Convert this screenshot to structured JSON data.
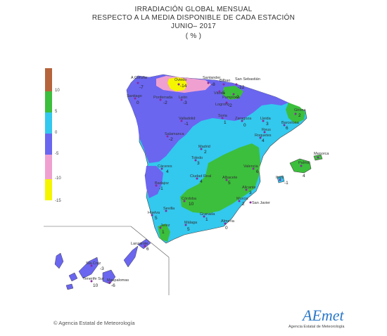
{
  "header": {
    "line1": "IRRADIACIÓN GLOBAL MENSUAL",
    "line2": "RESPECTO A LA MEDIA DISPONIBLE DE CADA ESTACIÓN",
    "line3": "JUNIO– 2017",
    "line4": "( % )"
  },
  "legend": {
    "bands": [
      {
        "color": "#b5643c"
      },
      {
        "color": "#3cbf3c"
      },
      {
        "color": "#33c8ee"
      },
      {
        "color": "#6a66f0"
      },
      {
        "color": "#f0a0d0"
      },
      {
        "color": "#f5f500"
      }
    ],
    "labels": [
      "10",
      "5",
      "0",
      "-5",
      "-10",
      "-15"
    ]
  },
  "stations": [
    {
      "name": "A Coruña",
      "value": "-7"
    },
    {
      "name": "Oviedo",
      "value": "-14"
    },
    {
      "name": "Santander",
      "value": "-8"
    },
    {
      "name": "Bilbao",
      "value": ""
    },
    {
      "name": "San Sebastián",
      "value": "-12"
    },
    {
      "name": "Vitoria",
      "value": "-5"
    },
    {
      "name": "Pamplona",
      "value": "-2"
    },
    {
      "name": "Logroño",
      "value": "-2"
    },
    {
      "name": "Santiago",
      "value": "0"
    },
    {
      "name": "Ponferrada",
      "value": "-2"
    },
    {
      "name": "León",
      "value": "-3"
    },
    {
      "name": "Soria",
      "value": "1"
    },
    {
      "name": "Zaragoza",
      "value": "0"
    },
    {
      "name": "Lleida",
      "value": "3"
    },
    {
      "name": "Girona",
      "value": "2"
    },
    {
      "name": "Barcelona",
      "value": "6"
    },
    {
      "name": "Reus",
      "value": ""
    },
    {
      "name": "Roquetes",
      "value": "4"
    },
    {
      "name": "Valladolid",
      "value": "-1"
    },
    {
      "name": "Salamanca",
      "value": "-2"
    },
    {
      "name": "Madrid",
      "value": "2"
    },
    {
      "name": "Toledo",
      "value": "3"
    },
    {
      "name": "Cáceres",
      "value": "4"
    },
    {
      "name": "Badajoz",
      "value": "-1"
    },
    {
      "name": "Ciudad Real",
      "value": "4"
    },
    {
      "name": "Albacete",
      "value": "5"
    },
    {
      "name": "Valencia",
      "value": "6"
    },
    {
      "name": "Palma",
      "value": "4"
    },
    {
      "name": "Menorca",
      "value": ""
    },
    {
      "name": "Ibiza",
      "value": "-1"
    },
    {
      "name": "Alicante",
      "value": "3"
    },
    {
      "name": "Murcia",
      "value": "2"
    },
    {
      "name": "San Javier",
      "value": ""
    },
    {
      "name": "Córdoba",
      "value": "10"
    },
    {
      "name": "Huelva",
      "value": "5"
    },
    {
      "name": "Sevilla",
      "value": ""
    },
    {
      "name": "Granada",
      "value": "1"
    },
    {
      "name": "Almería",
      "value": "0"
    },
    {
      "name": "Jerez",
      "value": "1"
    },
    {
      "name": "Málaga",
      "value": "5"
    },
    {
      "name": "Lanzarote",
      "value": "6"
    },
    {
      "name": "Sta.Cruz",
      "value": "-3"
    },
    {
      "name": "Tenerife Sur",
      "value": "10"
    },
    {
      "name": "Maspalomas",
      "value": "-6"
    }
  ],
  "footer": {
    "copyright": "© Agencia Estatal de Meteorología",
    "logo": "AEmet",
    "logo_sub": "Agencia Estatal de Meteorología"
  }
}
